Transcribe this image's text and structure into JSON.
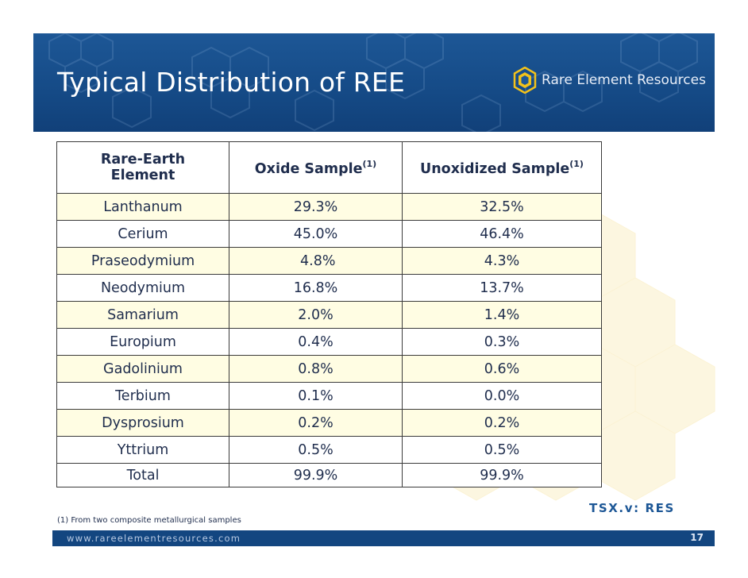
{
  "slide": {
    "title": "Typical Distribution of REE",
    "logo_text": "Rare Element Resources",
    "footnote": "(1) From two composite metallurgical samples",
    "ticker": "TSX.v: RES",
    "footer_url": "www.rareelementresources.com",
    "page_number": "17"
  },
  "table": {
    "headers": {
      "col1_line1": "Rare-Earth",
      "col1_line2": "Element",
      "col2": "Oxide Sample",
      "col2_sup": "(1)",
      "col3": "Unoxidized Sample",
      "col3_sup": "(1)"
    },
    "rows": [
      {
        "element": "Lanthanum",
        "oxide": "29.3%",
        "unoxidized": "32.5%"
      },
      {
        "element": "Cerium",
        "oxide": "45.0%",
        "unoxidized": "46.4%"
      },
      {
        "element": "Praseodymium",
        "oxide": " 4.8%",
        "unoxidized": "4.3%"
      },
      {
        "element": "Neodymium",
        "oxide": "16.8%",
        "unoxidized": "13.7%"
      },
      {
        "element": "Samarium",
        "oxide": "2.0%",
        "unoxidized": "1.4%"
      },
      {
        "element": "Europium",
        "oxide": "0.4%",
        "unoxidized": "0.3%"
      },
      {
        "element": "Gadolinium",
        "oxide": "0.8%",
        "unoxidized": "0.6%"
      },
      {
        "element": "Terbium",
        "oxide": "0.1%",
        "unoxidized": "0.0%"
      },
      {
        "element": "Dysprosium",
        "oxide": "0.2%",
        "unoxidized": "0.2%"
      },
      {
        "element": "Yttrium",
        "oxide": "0.5%",
        "unoxidized": "0.5%"
      }
    ],
    "total": {
      "element": "Total",
      "oxide": "99.9%",
      "unoxidized": "99.9%"
    }
  },
  "colors": {
    "header_band": "#1d5796",
    "row_highlight": "#fffde3",
    "text": "#1f2d4d",
    "logo_gold": "#f2c21b"
  }
}
